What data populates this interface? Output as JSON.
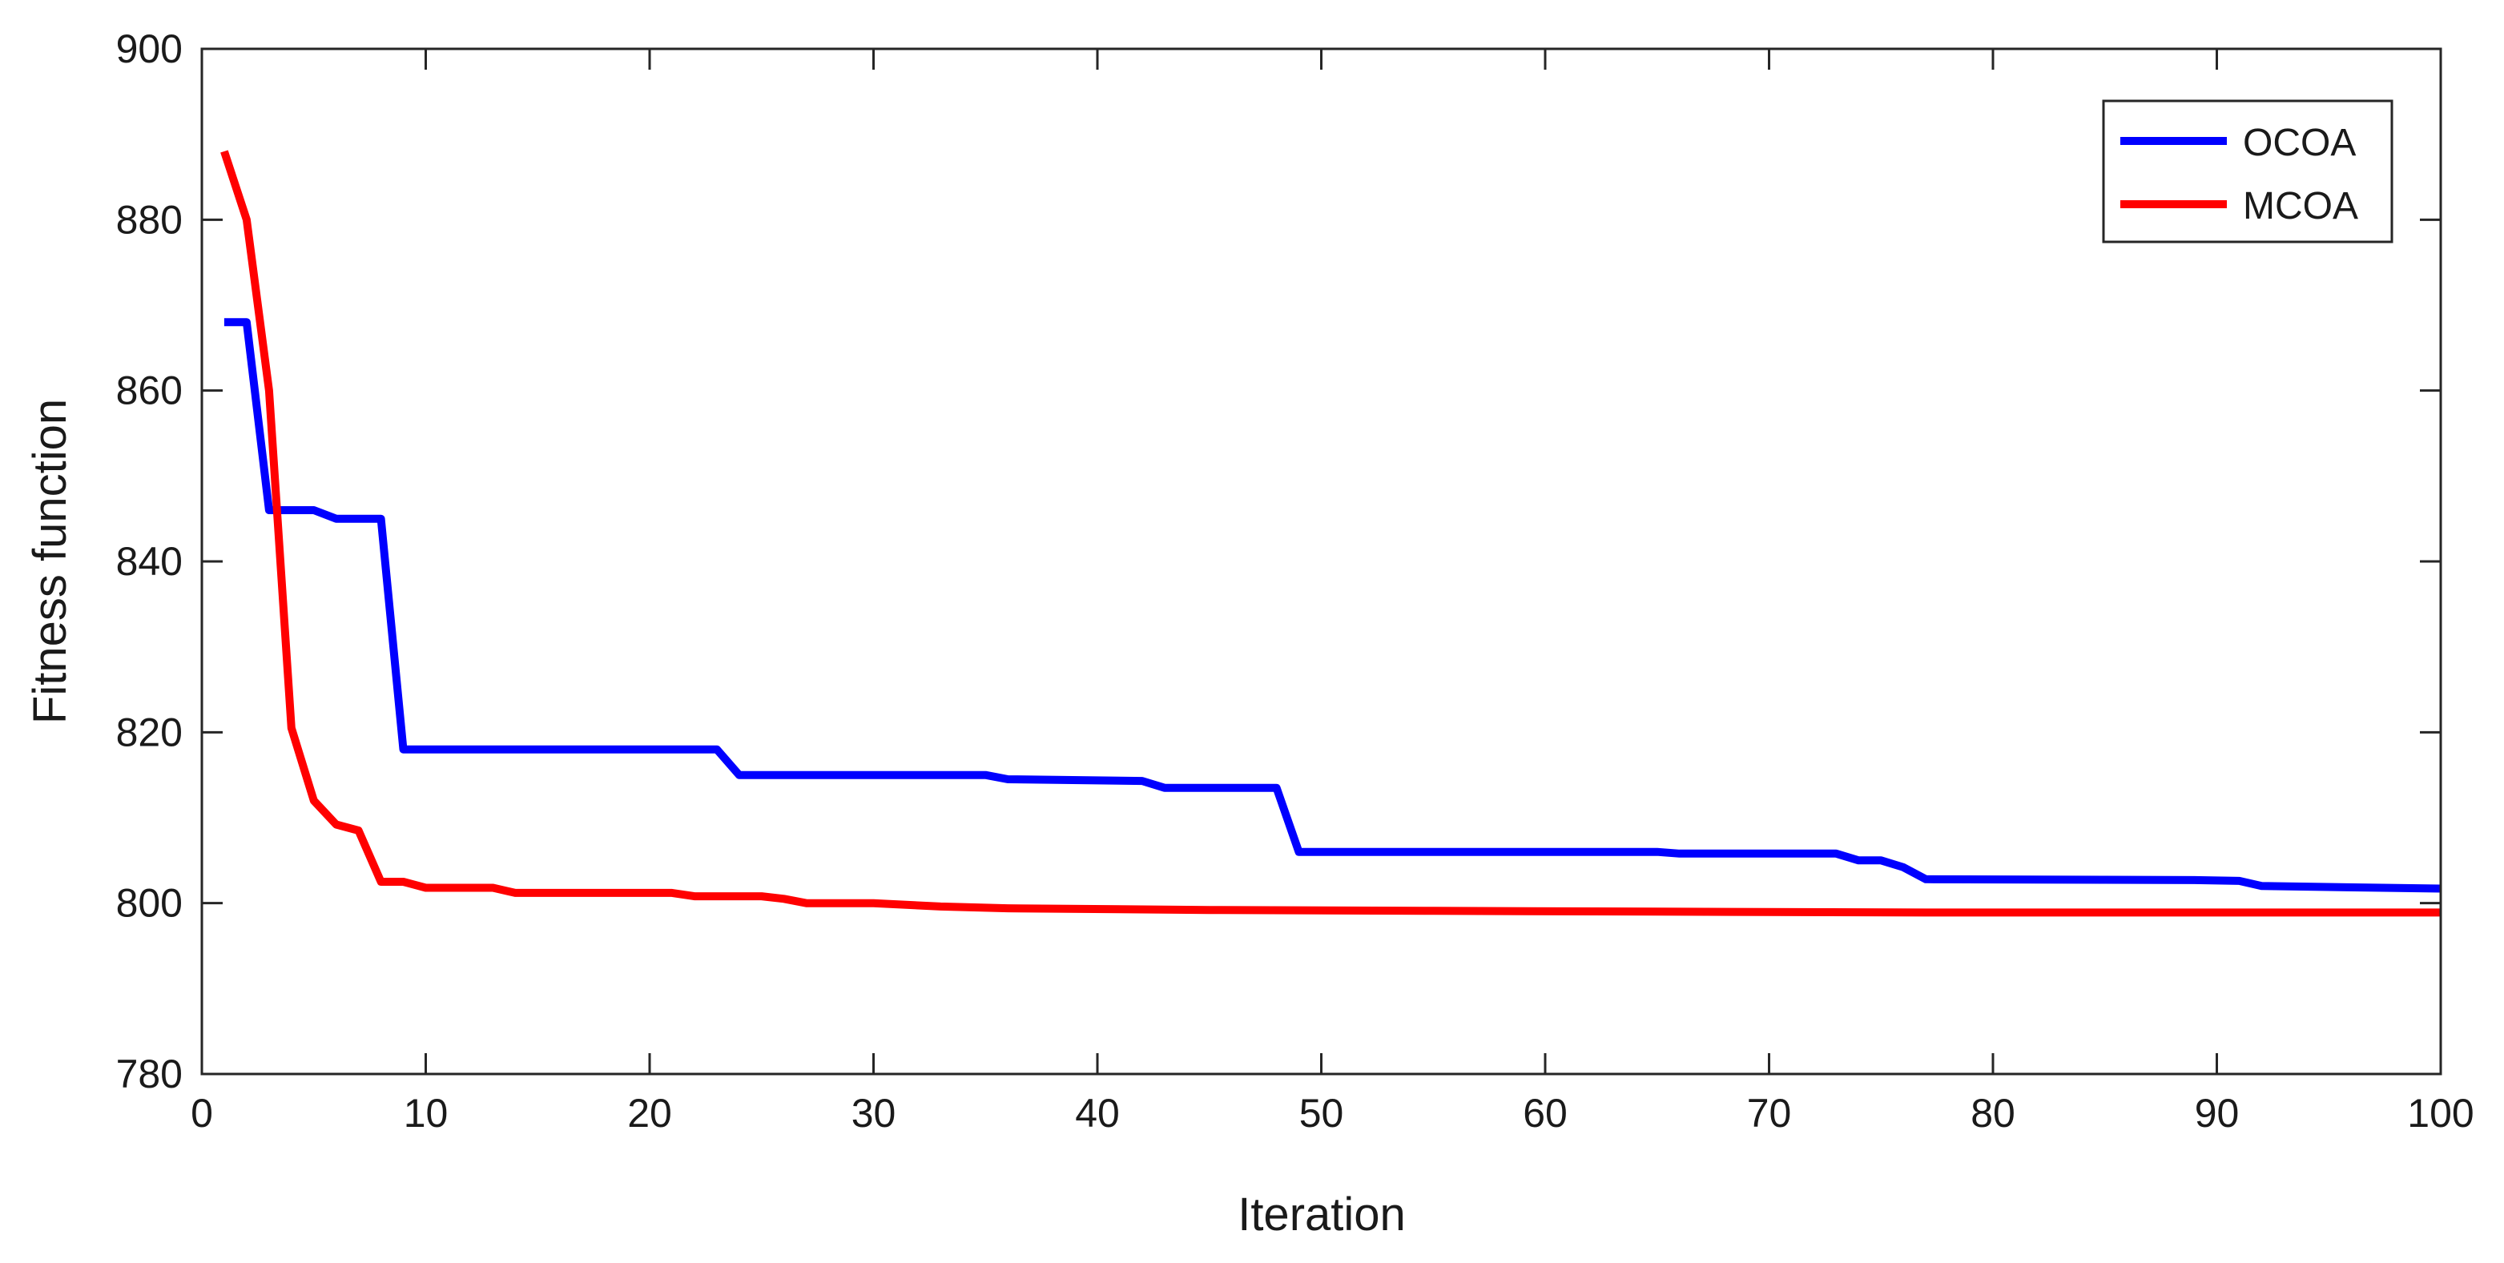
{
  "chart_data": {
    "type": "line",
    "title": "",
    "xlabel": "Iteration",
    "ylabel": "Fitness function",
    "xlim": [
      0,
      100
    ],
    "ylim": [
      780,
      900
    ],
    "xticks": [
      0,
      10,
      20,
      30,
      40,
      50,
      60,
      70,
      80,
      90,
      100
    ],
    "yticks": [
      780,
      800,
      820,
      840,
      860,
      880,
      900
    ],
    "grid": false,
    "legend_position": "top-right",
    "series": [
      {
        "name": "OCOA",
        "color": "#0000ff",
        "points": [
          [
            1,
            868
          ],
          [
            2,
            868
          ],
          [
            3,
            846
          ],
          [
            4,
            846
          ],
          [
            5,
            846
          ],
          [
            6,
            845
          ],
          [
            7,
            845
          ],
          [
            8,
            845
          ],
          [
            9,
            818
          ],
          [
            10,
            818
          ],
          [
            23,
            818
          ],
          [
            24,
            815
          ],
          [
            35,
            815
          ],
          [
            36,
            814.5
          ],
          [
            42,
            814.3
          ],
          [
            43,
            813.5
          ],
          [
            48,
            813.5
          ],
          [
            49,
            806
          ],
          [
            65,
            806
          ],
          [
            66,
            805.8
          ],
          [
            73,
            805.8
          ],
          [
            74,
            805
          ],
          [
            75,
            805
          ],
          [
            76,
            804.2
          ],
          [
            77,
            802.8
          ],
          [
            89,
            802.7
          ],
          [
            91,
            802.6
          ],
          [
            92,
            802
          ],
          [
            100,
            801.7
          ]
        ]
      },
      {
        "name": "MCOA",
        "color": "#ff0000",
        "points": [
          [
            1,
            888
          ],
          [
            2,
            880
          ],
          [
            3,
            860
          ],
          [
            4,
            820.5
          ],
          [
            5,
            812
          ],
          [
            6,
            809.2
          ],
          [
            7,
            808.5
          ],
          [
            8,
            802.5
          ],
          [
            9,
            802.5
          ],
          [
            10,
            801.8
          ],
          [
            13,
            801.8
          ],
          [
            14,
            801.2
          ],
          [
            21,
            801.2
          ],
          [
            22,
            800.8
          ],
          [
            25,
            800.8
          ],
          [
            26,
            800.5
          ],
          [
            27,
            800
          ],
          [
            30,
            800
          ],
          [
            33,
            799.6
          ],
          [
            36,
            799.4
          ],
          [
            45,
            799.2
          ],
          [
            55,
            799.1
          ],
          [
            65,
            799
          ],
          [
            77,
            798.9
          ],
          [
            100,
            798.9
          ]
        ]
      }
    ]
  }
}
